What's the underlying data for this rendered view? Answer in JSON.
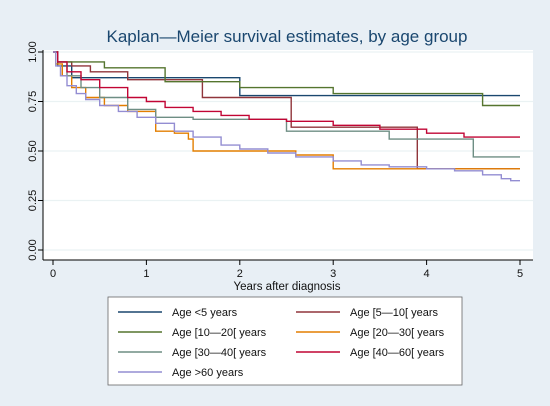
{
  "chart_data": {
    "type": "line",
    "title": "Kaplan—Meier survival estimates, by age group",
    "xlabel": "Years after diagnosis",
    "ylabel": "",
    "xlim": [
      0,
      5
    ],
    "ylim": [
      0,
      1
    ],
    "xticks": [
      "0",
      "1",
      "2",
      "3",
      "4",
      "5"
    ],
    "yticks": [
      "0.00",
      "0.25",
      "0.50",
      "0.75",
      "1.00"
    ],
    "grid": true,
    "legend_position": "bottom",
    "colors": {
      "background": "#e8eff5",
      "plot_background": "#ffffff",
      "title": "#1a476f"
    },
    "series": [
      {
        "name": "Age <5 years",
        "color": "#1a476f",
        "steps": [
          [
            0,
            1.0
          ],
          [
            0.05,
            0.93
          ],
          [
            0.2,
            0.87
          ],
          [
            2.0,
            0.78
          ],
          [
            5.0,
            0.78
          ]
        ]
      },
      {
        "name": "Age [5—10[ years",
        "color": "#90353b",
        "steps": [
          [
            0,
            1.0
          ],
          [
            0.05,
            0.95
          ],
          [
            0.2,
            0.93
          ],
          [
            0.4,
            0.9
          ],
          [
            0.8,
            0.86
          ],
          [
            1.6,
            0.77
          ],
          [
            2.55,
            0.62
          ],
          [
            3.9,
            0.41
          ],
          [
            5.0,
            0.41
          ]
        ]
      },
      {
        "name": "Age [10—20[ years",
        "color": "#55752f",
        "steps": [
          [
            0,
            1.0
          ],
          [
            0.05,
            0.95
          ],
          [
            0.55,
            0.92
          ],
          [
            1.2,
            0.85
          ],
          [
            2.0,
            0.82
          ],
          [
            3.0,
            0.79
          ],
          [
            4.6,
            0.73
          ],
          [
            5.0,
            0.73
          ]
        ]
      },
      {
        "name": "Age [20—30[ years",
        "color": "#e37e00",
        "steps": [
          [
            0,
            1.0
          ],
          [
            0.03,
            0.94
          ],
          [
            0.1,
            0.88
          ],
          [
            0.2,
            0.82
          ],
          [
            0.35,
            0.77
          ],
          [
            0.55,
            0.73
          ],
          [
            0.8,
            0.7
          ],
          [
            1.1,
            0.6
          ],
          [
            1.3,
            0.59
          ],
          [
            1.45,
            0.56
          ],
          [
            1.5,
            0.5
          ],
          [
            2.0,
            0.5
          ],
          [
            2.6,
            0.48
          ],
          [
            3.0,
            0.41
          ],
          [
            5.0,
            0.41
          ]
        ]
      },
      {
        "name": "Age [30—40[ years",
        "color": "#6e8e84",
        "steps": [
          [
            0,
            1.0
          ],
          [
            0.05,
            0.95
          ],
          [
            0.15,
            0.88
          ],
          [
            0.3,
            0.82
          ],
          [
            0.5,
            0.77
          ],
          [
            0.8,
            0.71
          ],
          [
            1.1,
            0.67
          ],
          [
            1.5,
            0.66
          ],
          [
            2.5,
            0.6
          ],
          [
            3.6,
            0.56
          ],
          [
            4.5,
            0.47
          ],
          [
            5.0,
            0.47
          ]
        ]
      },
      {
        "name": "Age [40—60[ years",
        "color": "#c10534",
        "steps": [
          [
            0,
            1.0
          ],
          [
            0.05,
            0.95
          ],
          [
            0.15,
            0.9
          ],
          [
            0.3,
            0.86
          ],
          [
            0.5,
            0.82
          ],
          [
            0.8,
            0.77
          ],
          [
            1.0,
            0.75
          ],
          [
            1.2,
            0.72
          ],
          [
            1.5,
            0.7
          ],
          [
            1.8,
            0.68
          ],
          [
            2.1,
            0.66
          ],
          [
            2.5,
            0.65
          ],
          [
            3.0,
            0.63
          ],
          [
            3.5,
            0.61
          ],
          [
            4.0,
            0.59
          ],
          [
            4.4,
            0.57
          ],
          [
            5.0,
            0.57
          ]
        ]
      },
      {
        "name": "Age >60 years",
        "color": "#938dd2",
        "steps": [
          [
            0,
            1.0
          ],
          [
            0.03,
            0.93
          ],
          [
            0.08,
            0.88
          ],
          [
            0.15,
            0.83
          ],
          [
            0.25,
            0.79
          ],
          [
            0.35,
            0.76
          ],
          [
            0.5,
            0.73
          ],
          [
            0.7,
            0.7
          ],
          [
            0.9,
            0.67
          ],
          [
            1.1,
            0.64
          ],
          [
            1.3,
            0.6
          ],
          [
            1.5,
            0.57
          ],
          [
            1.8,
            0.53
          ],
          [
            2.0,
            0.51
          ],
          [
            2.3,
            0.49
          ],
          [
            2.6,
            0.47
          ],
          [
            3.0,
            0.45
          ],
          [
            3.3,
            0.43
          ],
          [
            3.6,
            0.42
          ],
          [
            4.0,
            0.41
          ],
          [
            4.3,
            0.4
          ],
          [
            4.6,
            0.38
          ],
          [
            4.8,
            0.36
          ],
          [
            4.9,
            0.35
          ],
          [
            5.0,
            0.35
          ]
        ]
      }
    ]
  }
}
